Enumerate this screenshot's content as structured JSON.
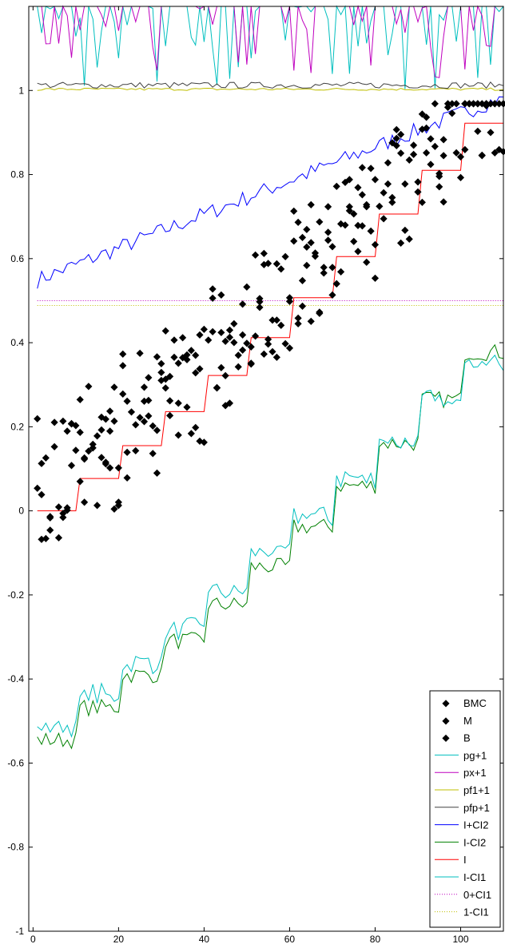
{
  "chart_data": {
    "type": "line",
    "title": "",
    "xlabel": "",
    "ylabel": "",
    "xlim": [
      -1,
      110
    ],
    "ylim": [
      -1,
      1.2
    ],
    "x_ticks": [
      0,
      20,
      40,
      60,
      80,
      100
    ],
    "y_ticks": [
      -1,
      -0.8,
      -0.6,
      -0.4,
      -0.2,
      0,
      0.2,
      0.4,
      0.6,
      0.8,
      1
    ],
    "x_tick_labels": [
      "0",
      "20",
      "40",
      "60",
      "80",
      "100"
    ],
    "y_tick_labels": [
      "-1",
      "-0.8",
      "-0.6",
      "-0.4",
      "-0.2",
      "0",
      "0.2",
      "0.4",
      "0.6",
      "0.8",
      "1"
    ],
    "grid": false,
    "legend_position": "bottom-right",
    "step_levels": [
      0,
      0.077,
      0.155,
      0.236,
      0.322,
      0.412,
      0.507,
      0.605,
      0.706,
      0.81,
      0.922
    ],
    "series": [
      {
        "name": "BMC",
        "kind": "points",
        "color": "#0000ff"
      },
      {
        "name": "M",
        "kind": "points",
        "color": "#008000"
      },
      {
        "name": "B",
        "kind": "points",
        "color": "#ff0000"
      },
      {
        "name": "pg+1",
        "kind": "line",
        "color": "#00bfbf"
      },
      {
        "name": "px+1",
        "kind": "line",
        "color": "#bf00bf"
      },
      {
        "name": "pf1+1",
        "kind": "line",
        "color": "#bfbf00"
      },
      {
        "name": "pfp+1",
        "kind": "line",
        "color": "#404040"
      },
      {
        "name": "I+CI2",
        "kind": "line",
        "color": "#0000ff"
      },
      {
        "name": "I-CI2",
        "kind": "line",
        "color": "#008000"
      },
      {
        "name": "I",
        "kind": "line",
        "color": "#ff0000"
      },
      {
        "name": "I-CI1",
        "kind": "line",
        "color": "#00bfbf"
      },
      {
        "name": "0+CI1",
        "kind": "dotted",
        "color": "#bf00bf",
        "value": 0.5
      },
      {
        "name": "1-CI1",
        "kind": "dotted",
        "color": "#bfbf00",
        "value": 0.5
      }
    ]
  }
}
